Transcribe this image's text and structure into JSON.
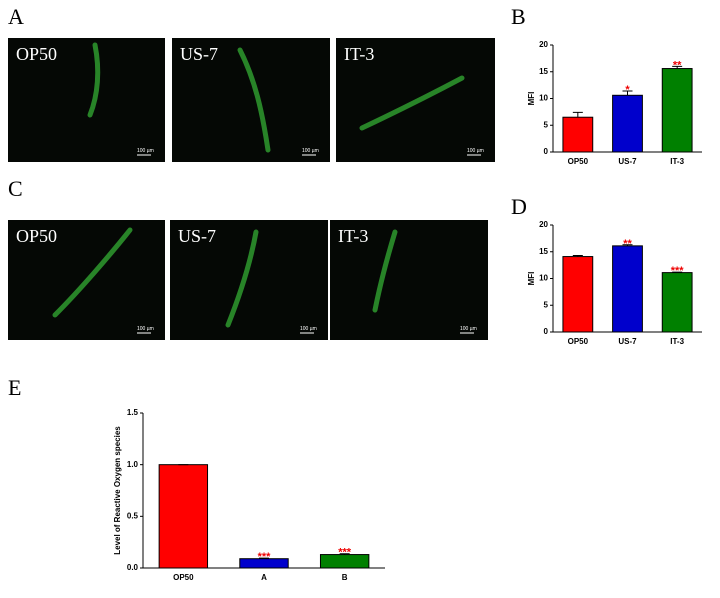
{
  "panels": [
    "A",
    "B",
    "C",
    "D",
    "E"
  ],
  "micrographs": [
    {
      "labels": [
        "OP50",
        "US-7",
        "IT-3"
      ],
      "scale": [
        "100 µm",
        "100 µm",
        "100 µm"
      ]
    },
    {
      "labels": [
        "OP50",
        "US-7",
        "IT-3"
      ],
      "scale": [
        "100 µm",
        "100 µm",
        "100 µm"
      ]
    }
  ],
  "chart_data": [
    {
      "type": "bar",
      "y_label": "MFI",
      "categories": [
        "OP50",
        "US-7",
        "IT-3"
      ],
      "values": [
        6.5,
        10.6,
        15.6
      ],
      "errors": [
        0.9,
        0.8,
        0.4
      ],
      "annotations": [
        null,
        "*",
        "**"
      ],
      "colors": [
        "#ff0000",
        "#0000cc",
        "#008000"
      ],
      "ylim": [
        0,
        20
      ],
      "yticks": [
        0,
        5,
        10,
        15,
        20
      ]
    },
    {
      "type": "bar",
      "y_label": "MFI",
      "categories": [
        "OP50",
        "US-7",
        "IT-3"
      ],
      "values": [
        14.1,
        16.1,
        11.1
      ],
      "errors": [
        0.2,
        0.2,
        0.1
      ],
      "annotations": [
        null,
        "**",
        "***"
      ],
      "colors": [
        "#ff0000",
        "#0000cc",
        "#008000"
      ],
      "ylim": [
        0,
        20
      ],
      "yticks": [
        0,
        5,
        10,
        15,
        20
      ]
    },
    {
      "type": "bar",
      "y_label": "Level of Reactive Oxygen species",
      "categories": [
        "OP50",
        "A",
        "B"
      ],
      "values": [
        1.0,
        0.09,
        0.13
      ],
      "errors": [
        0,
        0.005,
        0.008
      ],
      "annotations": [
        null,
        "***",
        "***"
      ],
      "colors": [
        "#ff0000",
        "#0000cc",
        "#008000"
      ],
      "ylim": [
        0,
        1.5
      ],
      "yticks": [
        {
          "value": 0,
          "label": "0.0"
        },
        0.5,
        {
          "value": 1,
          "label": "1.0"
        },
        1.5
      ]
    }
  ]
}
